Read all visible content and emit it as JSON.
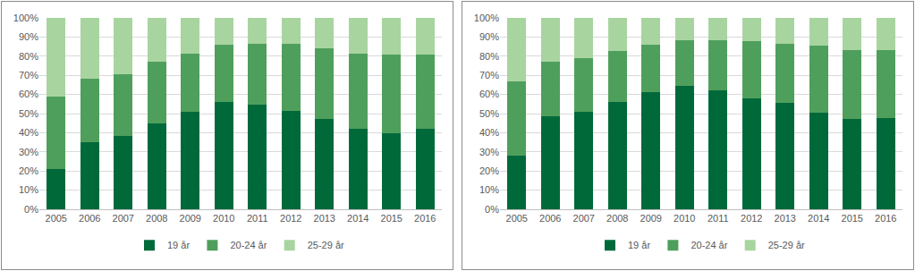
{
  "chart_data": [
    {
      "type": "bar",
      "stacked": true,
      "grid": true,
      "legend": "bottom",
      "categories": [
        "2005",
        "2006",
        "2007",
        "2008",
        "2009",
        "2010",
        "2011",
        "2012",
        "2013",
        "2014",
        "2015",
        "2016"
      ],
      "ylim": [
        0,
        100
      ],
      "yticks": [
        {
          "value": 0,
          "label": "0%"
        },
        {
          "value": 10,
          "label": "10%"
        },
        {
          "value": 20,
          "label": "20%"
        },
        {
          "value": 30,
          "label": "30%"
        },
        {
          "value": 40,
          "label": "40%"
        },
        {
          "value": 50,
          "label": "50%"
        },
        {
          "value": 60,
          "label": "60%"
        },
        {
          "value": 70,
          "label": "70%"
        },
        {
          "value": 80,
          "label": "80%"
        },
        {
          "value": 90,
          "label": "90%"
        },
        {
          "value": 100,
          "label": "100%"
        }
      ],
      "series": [
        {
          "name": "19 år",
          "color": "#00693a",
          "values": [
            21,
            35,
            38.5,
            45,
            51,
            56,
            54.5,
            51.5,
            47,
            42,
            39.5,
            42
          ]
        },
        {
          "name": "20-24 år",
          "color": "#4f9f5c",
          "values": [
            38,
            33,
            32,
            32,
            30.5,
            30,
            32,
            35,
            37,
            39.5,
            41.5,
            39
          ]
        },
        {
          "name": "25-29 år",
          "color": "#a8d4a0",
          "values": [
            41,
            32,
            29.5,
            23,
            18.5,
            14,
            13.5,
            13.5,
            16,
            18.5,
            19,
            19
          ]
        }
      ]
    },
    {
      "type": "bar",
      "stacked": true,
      "grid": true,
      "legend": "bottom",
      "categories": [
        "2005",
        "2006",
        "2007",
        "2008",
        "2009",
        "2010",
        "2011",
        "2012",
        "2013",
        "2014",
        "2015",
        "2016"
      ],
      "ylim": [
        0,
        100
      ],
      "yticks": [
        {
          "value": 0,
          "label": "0%"
        },
        {
          "value": 10,
          "label": "10%"
        },
        {
          "value": 20,
          "label": "20%"
        },
        {
          "value": 30,
          "label": "30%"
        },
        {
          "value": 40,
          "label": "40%"
        },
        {
          "value": 50,
          "label": "50%"
        },
        {
          "value": 60,
          "label": "60%"
        },
        {
          "value": 70,
          "label": "70%"
        },
        {
          "value": 80,
          "label": "80%"
        },
        {
          "value": 90,
          "label": "90%"
        },
        {
          "value": 100,
          "label": "100%"
        }
      ],
      "series": [
        {
          "name": "19 år",
          "color": "#00693a",
          "values": [
            28,
            48.5,
            51,
            56,
            61,
            64.5,
            62,
            58,
            55.5,
            50.5,
            47,
            47.5
          ]
        },
        {
          "name": "20-24 år",
          "color": "#4f9f5c",
          "values": [
            39,
            28.5,
            28,
            26.5,
            25,
            24,
            26.5,
            30,
            31,
            35,
            36,
            35.5
          ]
        },
        {
          "name": "25-29 år",
          "color": "#a8d4a0",
          "values": [
            33,
            23,
            21,
            17.5,
            14,
            11.5,
            11.5,
            12,
            13.5,
            14.5,
            17,
            17
          ]
        }
      ]
    }
  ]
}
